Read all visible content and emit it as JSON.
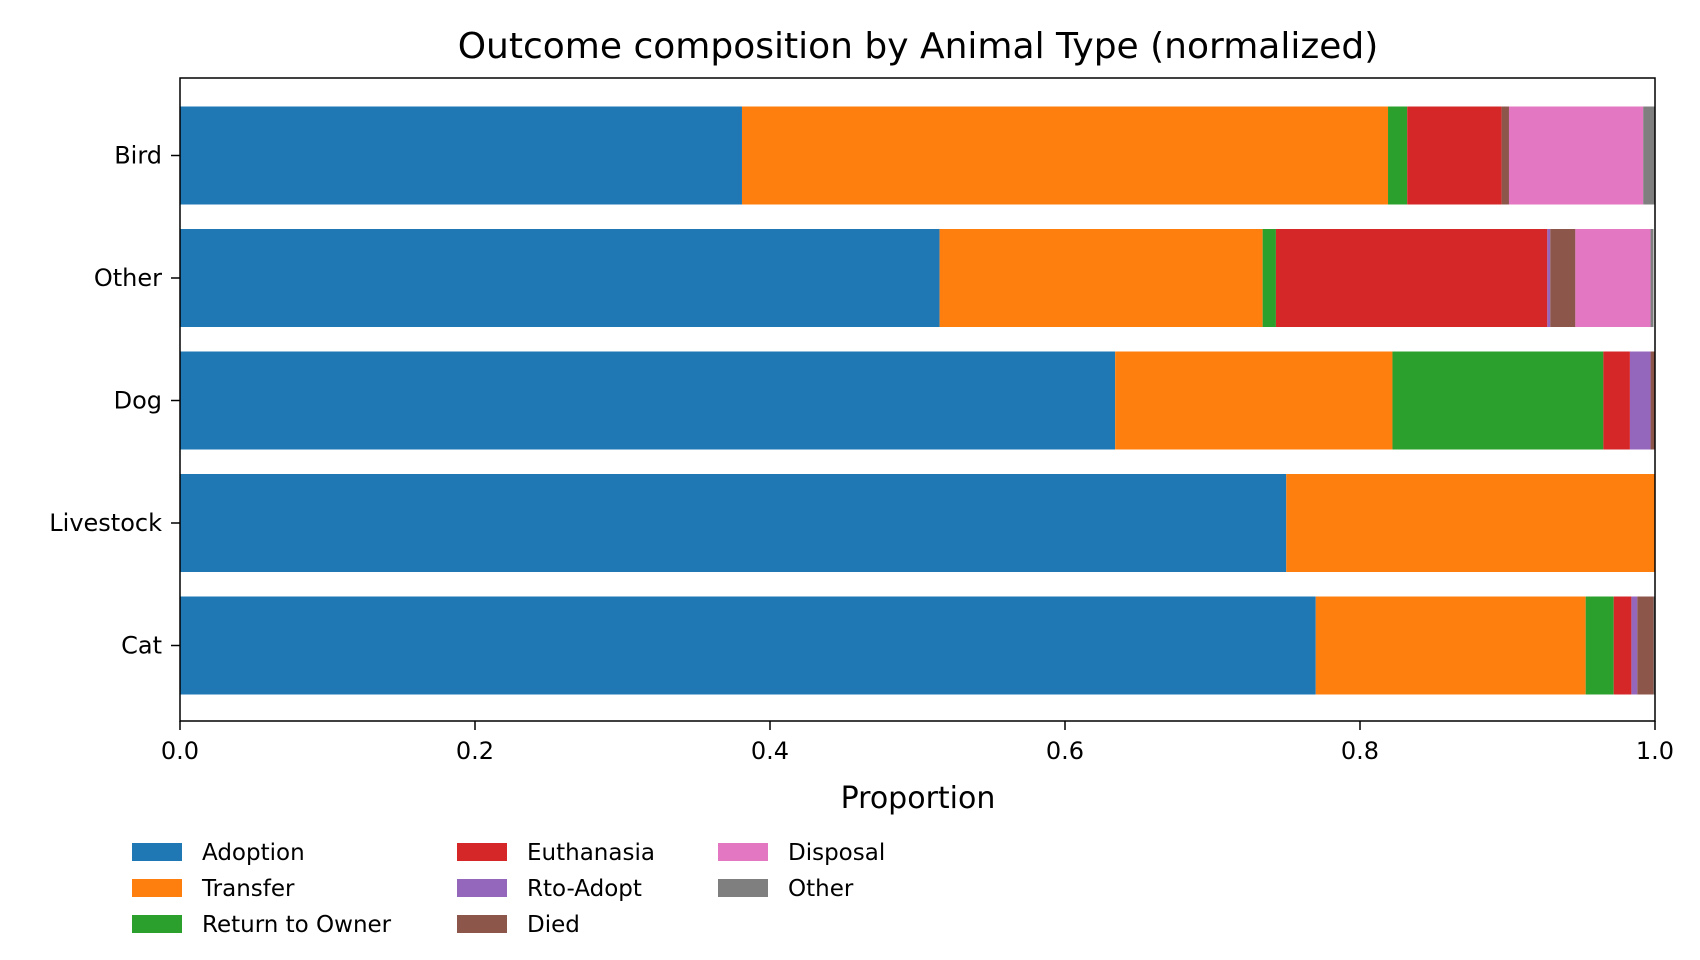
{
  "chart_data": {
    "type": "bar",
    "orientation": "horizontal",
    "stacked": true,
    "title": "Outcome composition by Animal Type (normalized)",
    "xlabel": "Proportion",
    "ylabel": "",
    "xlim": [
      0,
      1
    ],
    "xticks": [
      "0.0",
      "0.2",
      "0.4",
      "0.6",
      "0.8",
      "1.0"
    ],
    "categories": [
      "Bird",
      "Other",
      "Dog",
      "Livestock",
      "Cat"
    ],
    "legend_position": "bottom-left",
    "grid": false,
    "series": [
      {
        "name": "Adoption",
        "color": "#1f77b4",
        "values": [
          0.381,
          0.515,
          0.634,
          0.75,
          0.77
        ]
      },
      {
        "name": "Transfer",
        "color": "#ff7f0e",
        "values": [
          0.438,
          0.219,
          0.188,
          0.25,
          0.183
        ]
      },
      {
        "name": "Return to Owner",
        "color": "#2ca02c",
        "values": [
          0.013,
          0.009,
          0.143,
          0.0,
          0.019
        ]
      },
      {
        "name": "Euthanasia",
        "color": "#d62728",
        "values": [
          0.064,
          0.184,
          0.018,
          0.0,
          0.012
        ]
      },
      {
        "name": "Rto-Adopt",
        "color": "#9467bd",
        "values": [
          0.0,
          0.002,
          0.014,
          0.0,
          0.004
        ]
      },
      {
        "name": "Died",
        "color": "#8c564b",
        "values": [
          0.005,
          0.017,
          0.003,
          0.0,
          0.011
        ]
      },
      {
        "name": "Disposal",
        "color": "#e377c2",
        "values": [
          0.091,
          0.051,
          0.0,
          0.0,
          0.0
        ]
      },
      {
        "name": "Other",
        "color": "#7f7f7f",
        "values": [
          0.008,
          0.002,
          0.0,
          0.0,
          0.001
        ]
      }
    ]
  }
}
